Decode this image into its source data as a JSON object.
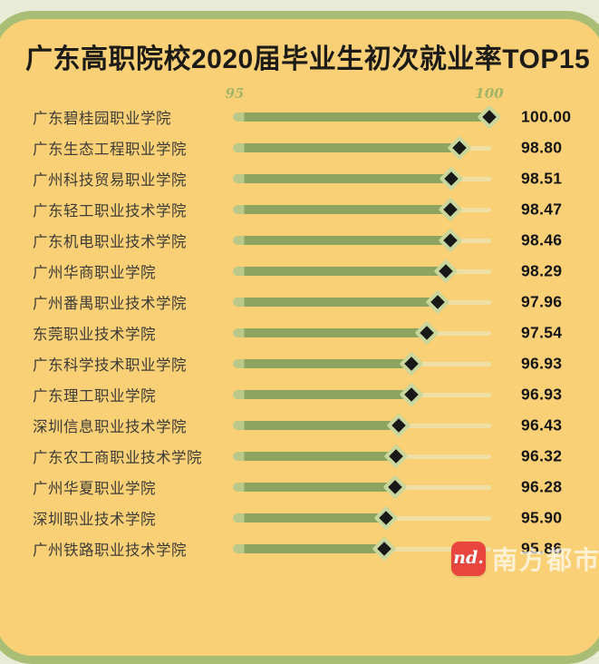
{
  "chart_data": {
    "type": "bar",
    "orientation": "horizontal",
    "marker": "diamond",
    "grid": false,
    "legend": false,
    "title": "广东高职院校2020届毕业生初次就业率TOP15",
    "categories": [
      "广东碧桂园职业学院",
      "广东生态工程职业学院",
      "广州科技贸易职业学院",
      "广东轻工职业技术学院",
      "广东机电职业技术学院",
      "广州华商职业学院",
      "广州番禺职业技术学院",
      "东莞职业技术学院",
      "广东科学技术职业学院",
      "广东理工职业学院",
      "深圳信息职业技术学院",
      "广东农工商职业技术学院",
      "广州华夏职业学院",
      "深圳职业技术学院",
      "广州铁路职业技术学院"
    ],
    "values": [
      100.0,
      98.8,
      98.51,
      98.47,
      98.46,
      98.29,
      97.96,
      97.54,
      96.93,
      96.93,
      96.43,
      96.32,
      96.28,
      95.9,
      95.86
    ],
    "value_labels": [
      "100.00",
      "98.80",
      "98.51",
      "98.47",
      "98.46",
      "98.29",
      "97.96",
      "97.54",
      "96.93",
      "96.93",
      "96.43",
      "96.32",
      "96.28",
      "95.90",
      "95.86"
    ],
    "axis": {
      "ticks": [
        "95",
        "100"
      ],
      "xlim_visual": [
        89.86,
        100
      ]
    }
  },
  "watermark": {
    "logo_text": "nd.",
    "brand": "南方都市报"
  },
  "colors": {
    "outer-bg": "#e8ebd6",
    "ring": "#a9be74",
    "card-bg": "#f9d076",
    "title": "#1c1b18",
    "name": "#3d3c38",
    "value": "#151515",
    "tick": "#a3b566",
    "bar": "#8da460",
    "barcap": "#bac989",
    "track": "#eddfa6",
    "marker": "#181818",
    "marker-border": "#c9d69c",
    "logo-red": "#e7453e"
  }
}
